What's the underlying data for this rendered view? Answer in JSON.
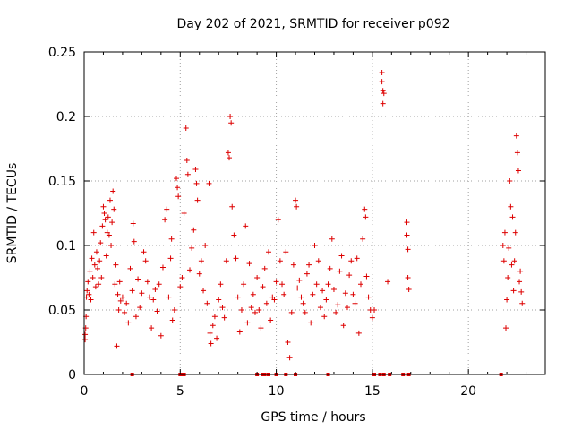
{
  "chart_data": {
    "type": "scatter",
    "title": "Day 202 of 2021, SRMTID for receiver p092",
    "xlabel": "GPS time / hours",
    "ylabel": "SRMTID / TECUs",
    "xlim": [
      0,
      24
    ],
    "ylim": [
      0,
      0.25
    ],
    "x_ticks": [
      0,
      5,
      10,
      15,
      20
    ],
    "x_tick_labels": [
      "0",
      "5",
      "10",
      "15",
      "20"
    ],
    "y_ticks": [
      0,
      0.05,
      0.1,
      0.15,
      0.2,
      0.25
    ],
    "y_tick_labels": [
      "0",
      "0.05",
      "0.1",
      "0.15",
      "0.2",
      "0.25"
    ],
    "grid": true,
    "colors": {
      "series": "#dd0000",
      "grid": "#a0a0a0",
      "axis": "#000000"
    },
    "series": [
      {
        "name": "SRMTID",
        "marker": "+",
        "points": [
          [
            0.05,
            0.027
          ],
          [
            0.05,
            0.031
          ],
          [
            0.08,
            0.036
          ],
          [
            0.1,
            0.045
          ],
          [
            0.12,
            0.06
          ],
          [
            0.15,
            0.065
          ],
          [
            0.2,
            0.072
          ],
          [
            0.25,
            0.062
          ],
          [
            0.3,
            0.08
          ],
          [
            0.35,
            0.058
          ],
          [
            0.4,
            0.09
          ],
          [
            0.45,
            0.075
          ],
          [
            0.5,
            0.11
          ],
          [
            0.55,
            0.085
          ],
          [
            0.6,
            0.068
          ],
          [
            0.65,
            0.095
          ],
          [
            0.7,
            0.082
          ],
          [
            0.75,
            0.07
          ],
          [
            0.8,
            0.088
          ],
          [
            0.85,
            0.102
          ],
          [
            0.9,
            0.075
          ],
          [
            0.95,
            0.115
          ],
          [
            1.0,
            0.13
          ],
          [
            1.05,
            0.125
          ],
          [
            1.1,
            0.12
          ],
          [
            1.15,
            0.092
          ],
          [
            1.2,
            0.11
          ],
          [
            1.25,
            0.122
          ],
          [
            1.3,
            0.108
          ],
          [
            1.35,
            0.135
          ],
          [
            1.4,
            0.1
          ],
          [
            1.45,
            0.118
          ],
          [
            1.5,
            0.142
          ],
          [
            1.55,
            0.128
          ],
          [
            1.6,
            0.07
          ],
          [
            1.65,
            0.085
          ],
          [
            1.7,
            0.022
          ],
          [
            1.75,
            0.062
          ],
          [
            1.8,
            0.05
          ],
          [
            1.85,
            0.072
          ],
          [
            1.9,
            0.057
          ],
          [
            2.0,
            0.06
          ],
          [
            2.1,
            0.048
          ],
          [
            2.2,
            0.055
          ],
          [
            2.3,
            0.04
          ],
          [
            2.4,
            0.082
          ],
          [
            2.5,
            0.065
          ],
          [
            2.55,
            0.117
          ],
          [
            2.6,
            0.103
          ],
          [
            2.7,
            0.045
          ],
          [
            2.8,
            0.074
          ],
          [
            2.9,
            0.052
          ],
          [
            3.0,
            0.063
          ],
          [
            3.1,
            0.095
          ],
          [
            3.2,
            0.088
          ],
          [
            3.3,
            0.072
          ],
          [
            3.4,
            0.06
          ],
          [
            3.5,
            0.036
          ],
          [
            3.6,
            0.058
          ],
          [
            3.7,
            0.066
          ],
          [
            3.8,
            0.049
          ],
          [
            3.9,
            0.07
          ],
          [
            4.0,
            0.03
          ],
          [
            4.1,
            0.083
          ],
          [
            4.2,
            0.12
          ],
          [
            4.3,
            0.128
          ],
          [
            4.4,
            0.06
          ],
          [
            4.5,
            0.09
          ],
          [
            4.55,
            0.105
          ],
          [
            4.6,
            0.042
          ],
          [
            4.7,
            0.05
          ],
          [
            4.8,
            0.152
          ],
          [
            4.85,
            0.145
          ],
          [
            4.9,
            0.138
          ],
          [
            5.0,
            0.068
          ],
          [
            5.1,
            0.075
          ],
          [
            5.2,
            0.125
          ],
          [
            5.3,
            0.191
          ],
          [
            5.35,
            0.166
          ],
          [
            5.4,
            0.155
          ],
          [
            5.5,
            0.081
          ],
          [
            5.6,
            0.098
          ],
          [
            5.7,
            0.112
          ],
          [
            5.8,
            0.159
          ],
          [
            5.85,
            0.148
          ],
          [
            5.9,
            0.135
          ],
          [
            6.0,
            0.078
          ],
          [
            6.1,
            0.088
          ],
          [
            6.2,
            0.065
          ],
          [
            6.3,
            0.1
          ],
          [
            6.4,
            0.055
          ],
          [
            6.5,
            0.148
          ],
          [
            6.55,
            0.032
          ],
          [
            6.6,
            0.024
          ],
          [
            6.7,
            0.038
          ],
          [
            6.8,
            0.045
          ],
          [
            6.9,
            0.028
          ],
          [
            7.0,
            0.058
          ],
          [
            7.1,
            0.07
          ],
          [
            7.2,
            0.052
          ],
          [
            7.3,
            0.044
          ],
          [
            7.4,
            0.088
          ],
          [
            7.5,
            0.172
          ],
          [
            7.55,
            0.168
          ],
          [
            7.6,
            0.2
          ],
          [
            7.65,
            0.195
          ],
          [
            7.7,
            0.13
          ],
          [
            7.8,
            0.108
          ],
          [
            7.9,
            0.09
          ],
          [
            8.0,
            0.06
          ],
          [
            8.1,
            0.033
          ],
          [
            8.2,
            0.05
          ],
          [
            8.3,
            0.07
          ],
          [
            8.4,
            0.115
          ],
          [
            8.5,
            0.04
          ],
          [
            8.6,
            0.086
          ],
          [
            8.7,
            0.052
          ],
          [
            8.8,
            0.062
          ],
          [
            8.9,
            0.048
          ],
          [
            9.0,
            0.075
          ],
          [
            9.1,
            0.05
          ],
          [
            9.2,
            0.036
          ],
          [
            9.3,
            0.068
          ],
          [
            9.4,
            0.082
          ],
          [
            9.5,
            0.055
          ],
          [
            9.6,
            0.095
          ],
          [
            9.7,
            0.042
          ],
          [
            9.8,
            0.06
          ],
          [
            9.9,
            0.058
          ],
          [
            10.0,
            0.072
          ],
          [
            10.1,
            0.12
          ],
          [
            10.2,
            0.088
          ],
          [
            10.3,
            0.07
          ],
          [
            10.4,
            0.062
          ],
          [
            10.5,
            0.095
          ],
          [
            10.6,
            0.025
          ],
          [
            10.7,
            0.013
          ],
          [
            10.8,
            0.048
          ],
          [
            10.9,
            0.085
          ],
          [
            11.0,
            0.135
          ],
          [
            11.05,
            0.13
          ],
          [
            11.1,
            0.067
          ],
          [
            11.2,
            0.073
          ],
          [
            11.3,
            0.06
          ],
          [
            11.4,
            0.055
          ],
          [
            11.5,
            0.048
          ],
          [
            11.6,
            0.078
          ],
          [
            11.7,
            0.085
          ],
          [
            11.8,
            0.04
          ],
          [
            11.9,
            0.062
          ],
          [
            12.0,
            0.1
          ],
          [
            12.1,
            0.07
          ],
          [
            12.2,
            0.088
          ],
          [
            12.3,
            0.052
          ],
          [
            12.4,
            0.065
          ],
          [
            12.5,
            0.045
          ],
          [
            12.6,
            0.058
          ],
          [
            12.7,
            0.07
          ],
          [
            12.8,
            0.082
          ],
          [
            12.9,
            0.105
          ],
          [
            13.0,
            0.066
          ],
          [
            13.1,
            0.048
          ],
          [
            13.2,
            0.054
          ],
          [
            13.3,
            0.08
          ],
          [
            13.4,
            0.092
          ],
          [
            13.5,
            0.038
          ],
          [
            13.6,
            0.063
          ],
          [
            13.7,
            0.052
          ],
          [
            13.8,
            0.077
          ],
          [
            13.9,
            0.088
          ],
          [
            14.0,
            0.062
          ],
          [
            14.1,
            0.055
          ],
          [
            14.2,
            0.09
          ],
          [
            14.3,
            0.032
          ],
          [
            14.4,
            0.07
          ],
          [
            14.5,
            0.105
          ],
          [
            14.6,
            0.128
          ],
          [
            14.65,
            0.122
          ],
          [
            14.7,
            0.076
          ],
          [
            14.8,
            0.06
          ],
          [
            14.9,
            0.05
          ],
          [
            15.0,
            0.044
          ],
          [
            15.1,
            0.05
          ],
          [
            15.5,
            0.234
          ],
          [
            15.5,
            0.227
          ],
          [
            15.55,
            0.22
          ],
          [
            15.55,
            0.21
          ],
          [
            15.6,
            0.218
          ],
          [
            15.8,
            0.072
          ],
          [
            16.8,
            0.118
          ],
          [
            16.8,
            0.108
          ],
          [
            16.85,
            0.097
          ],
          [
            16.85,
            0.075
          ],
          [
            16.9,
            0.066
          ],
          [
            21.8,
            0.1
          ],
          [
            21.85,
            0.088
          ],
          [
            21.9,
            0.11
          ],
          [
            21.95,
            0.036
          ],
          [
            22.0,
            0.058
          ],
          [
            22.05,
            0.075
          ],
          [
            22.1,
            0.098
          ],
          [
            22.15,
            0.15
          ],
          [
            22.2,
            0.13
          ],
          [
            22.25,
            0.085
          ],
          [
            22.3,
            0.122
          ],
          [
            22.35,
            0.065
          ],
          [
            22.4,
            0.088
          ],
          [
            22.45,
            0.11
          ],
          [
            22.5,
            0.185
          ],
          [
            22.55,
            0.172
          ],
          [
            22.6,
            0.158
          ],
          [
            22.65,
            0.072
          ],
          [
            22.7,
            0.08
          ],
          [
            22.75,
            0.064
          ],
          [
            22.8,
            0.055
          ]
        ]
      }
    ],
    "zero_markers_x": [
      2.5,
      5.0,
      5.1,
      5.2,
      9.0,
      9.3,
      9.4,
      9.6,
      10.0,
      10.5,
      11.0,
      12.7,
      15.1,
      15.4,
      15.6,
      15.9,
      16.6,
      16.9,
      21.7
    ]
  }
}
